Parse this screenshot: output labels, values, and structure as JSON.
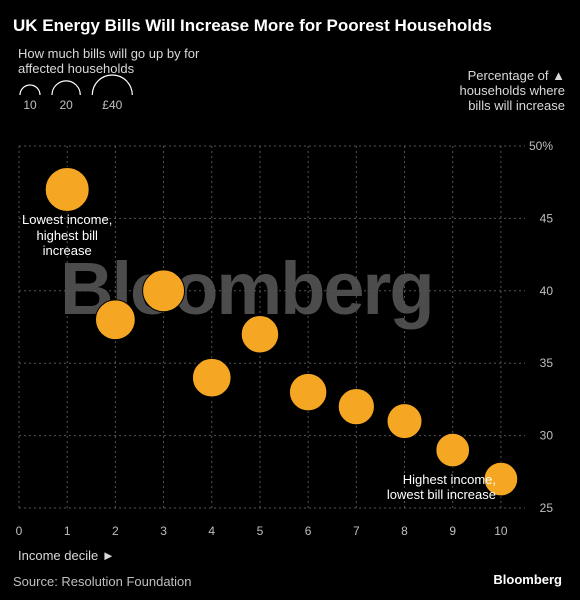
{
  "chart_data": {
    "type": "scatter",
    "title": "UK Energy Bills Will Increase More for Poorest Households",
    "size_legend_label": "How much bills will go up by for affected households",
    "size_legend_items": [
      {
        "label": "10",
        "amount": 10
      },
      {
        "label": "20",
        "amount": 20
      },
      {
        "label": "£40",
        "amount": 40
      }
    ],
    "ylabel": "Percentage of ▲ households where bills will increase",
    "xlabel": "Income decile ►",
    "xlim": [
      0,
      10.5
    ],
    "ylim": [
      25,
      50
    ],
    "x_ticks": [
      "0",
      "1",
      "2",
      "3",
      "4",
      "5",
      "6",
      "7",
      "8",
      "9",
      "10"
    ],
    "y_ticks": [
      "25",
      "30",
      "35",
      "40",
      "45",
      "50%"
    ],
    "points": [
      {
        "x": 1,
        "y": 47,
        "size": 40
      },
      {
        "x": 2,
        "y": 38,
        "size": 32
      },
      {
        "x": 3,
        "y": 40,
        "size": 36
      },
      {
        "x": 4,
        "y": 34,
        "size": 30
      },
      {
        "x": 5,
        "y": 37,
        "size": 28
      },
      {
        "x": 6,
        "y": 33,
        "size": 28
      },
      {
        "x": 7,
        "y": 32,
        "size": 26
      },
      {
        "x": 8,
        "y": 31,
        "size": 24
      },
      {
        "x": 9,
        "y": 29,
        "size": 22
      },
      {
        "x": 10,
        "y": 27,
        "size": 22
      }
    ],
    "annotations": [
      {
        "text": [
          "Lowest income,",
          "highest bill",
          "increase"
        ],
        "x": 1,
        "anchor": "middle"
      },
      {
        "text": [
          "Highest income,",
          "lowest bill increase"
        ],
        "x": 10,
        "anchor": "end"
      }
    ],
    "point_color": "#f5a623",
    "grid": true
  },
  "source": "Source: Resolution Foundation",
  "brand": "Bloomberg",
  "watermark": "Bloomberg"
}
